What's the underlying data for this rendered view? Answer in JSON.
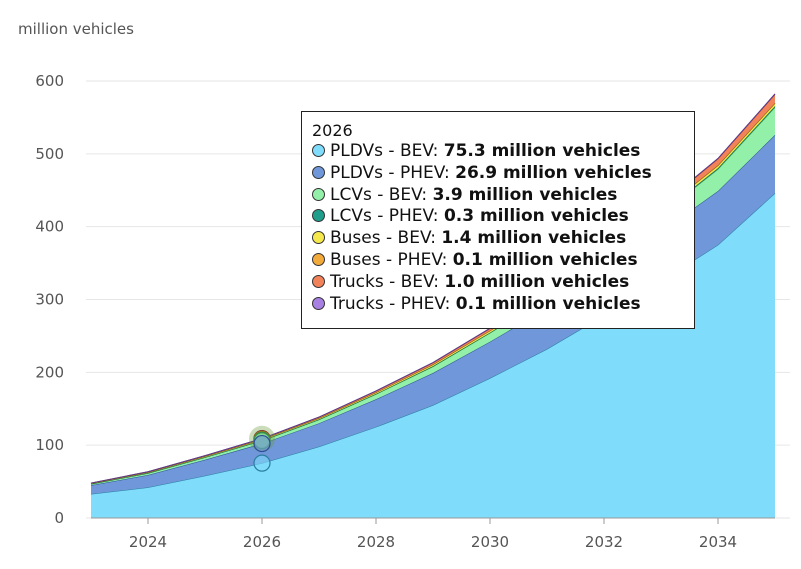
{
  "chart_data": {
    "type": "area",
    "stacked": true,
    "ylabel": "million vehicles",
    "x": [
      2023,
      2024,
      2025,
      2026,
      2027,
      2028,
      2029,
      2030,
      2031,
      2032,
      2033,
      2034,
      2035
    ],
    "xticks": [
      2024,
      2026,
      2028,
      2030,
      2032,
      2034
    ],
    "yticks": [
      0,
      100,
      200,
      300,
      400,
      500,
      600
    ],
    "ylim": [
      0,
      600
    ],
    "xlim": [
      2023,
      2035
    ],
    "grid": "horizontal",
    "series": [
      {
        "name": "PLDVs - BEV",
        "color": "#7fdcfb",
        "stroke": "#2a7ea0",
        "values": [
          33,
          42,
          58,
          75.3,
          98,
          125,
          155,
          192,
          232,
          278,
          325,
          375,
          446
        ]
      },
      {
        "name": "PLDVs - PHEV",
        "color": "#6f97da",
        "stroke": "#2d4f93",
        "values": [
          12,
          17,
          22,
          26.9,
          32,
          38,
          44,
          50,
          56,
          62,
          68,
          74,
          80
        ]
      },
      {
        "name": "LCVs - BEV",
        "color": "#93f0a8",
        "stroke": "#3a9a52",
        "values": [
          1.5,
          2.5,
          3.2,
          3.9,
          5,
          7,
          9,
          12,
          15,
          19,
          24,
          30,
          38
        ]
      },
      {
        "name": "LCVs - PHEV",
        "color": "#1f9e8c",
        "stroke": "#106055",
        "values": [
          0.1,
          0.2,
          0.25,
          0.3,
          0.35,
          0.4,
          0.5,
          0.6,
          0.7,
          0.9,
          1.1,
          1.3,
          1.5
        ]
      },
      {
        "name": "Buses - BEV",
        "color": "#f4e84c",
        "stroke": "#8a8020",
        "values": [
          0.9,
          1.1,
          1.2,
          1.4,
          1.6,
          1.9,
          2.2,
          2.5,
          2.8,
          3.1,
          3.4,
          3.7,
          4
        ]
      },
      {
        "name": "Buses - PHEV",
        "color": "#f2aa3a",
        "stroke": "#8a5f10",
        "values": [
          0.05,
          0.07,
          0.09,
          0.1,
          0.12,
          0.14,
          0.16,
          0.2,
          0.22,
          0.24,
          0.26,
          0.28,
          0.3
        ]
      },
      {
        "name": "Trucks - BEV",
        "color": "#f2825a",
        "stroke": "#8e3f20",
        "values": [
          0.4,
          0.6,
          0.8,
          1.0,
          1.4,
          1.9,
          2.4,
          3,
          4,
          5.5,
          7,
          9,
          12
        ]
      },
      {
        "name": "Trucks - PHEV",
        "color": "#a880e2",
        "stroke": "#5a3a90",
        "values": [
          0.03,
          0.05,
          0.08,
          0.1,
          0.12,
          0.14,
          0.16,
          0.2,
          0.25,
          0.3,
          0.35,
          0.4,
          0.5
        ]
      }
    ],
    "tooltip": {
      "year": "2026",
      "items": [
        {
          "label": "PLDVs - BEV:",
          "value": "75.3 million vehicles"
        },
        {
          "label": "PLDVs - PHEV:",
          "value": "26.9 million vehicles"
        },
        {
          "label": "LCVs - BEV:",
          "value": "3.9 million vehicles"
        },
        {
          "label": "LCVs - PHEV:",
          "value": "0.3 million vehicles"
        },
        {
          "label": "Buses - BEV:",
          "value": "1.4 million vehicles"
        },
        {
          "label": "Buses - PHEV:",
          "value": "0.1 million vehicles"
        },
        {
          "label": "Trucks - BEV:",
          "value": "1.0 million vehicles"
        },
        {
          "label": "Trucks - PHEV:",
          "value": "0.1 million vehicles"
        }
      ]
    }
  }
}
